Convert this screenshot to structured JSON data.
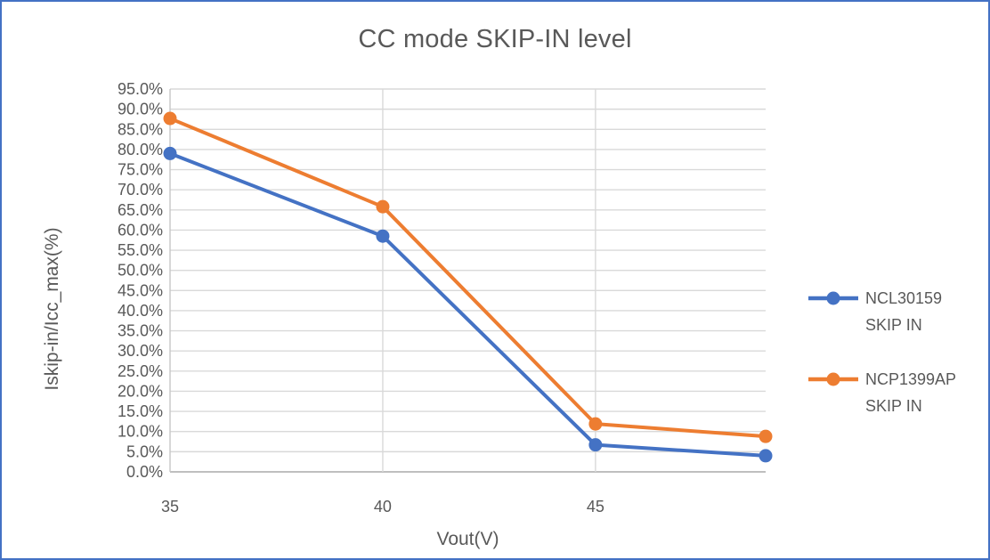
{
  "colors": {
    "frame_border": "#4472C4",
    "text": "#595959",
    "gridline": "#D9D9D9",
    "axis_line": "#BFBFBF"
  },
  "legend": {
    "entries": [
      {
        "label_line1": "NCL30159",
        "label_line2": "SKIP IN",
        "color": "#4472C4"
      },
      {
        "label_line1": "NCP1399AP",
        "label_line2": "SKIP IN",
        "color": "#ED7D31"
      }
    ]
  },
  "chart_data": {
    "type": "line",
    "title": "CC mode SKIP-IN level",
    "xlabel": "Vout(V)",
    "ylabel": "Iskip-in/Icc_max(%)",
    "xlim": [
      35,
      49
    ],
    "ylim_pct": [
      0,
      95
    ],
    "grid": true,
    "legend_position": "right",
    "x": [
      35,
      40,
      45,
      49
    ],
    "series": [
      {
        "name": "NCL30159 SKIP IN",
        "color": "#4472C4",
        "values_pct": [
          79.0,
          58.5,
          6.7,
          4.0
        ]
      },
      {
        "name": "NCP1399AP SKIP IN",
        "color": "#ED7D31",
        "values_pct": [
          87.7,
          65.8,
          11.9,
          8.8
        ]
      }
    ],
    "x_ticks": [
      {
        "value": 35,
        "label": "35"
      },
      {
        "value": 40,
        "label": "40"
      },
      {
        "value": 45,
        "label": "45"
      }
    ],
    "y_ticks": [
      {
        "value": 0,
        "label": "0.0%"
      },
      {
        "value": 5,
        "label": "5.0%"
      },
      {
        "value": 10,
        "label": "10.0%"
      },
      {
        "value": 15,
        "label": "15.0%"
      },
      {
        "value": 20,
        "label": "20.0%"
      },
      {
        "value": 25,
        "label": "25.0%"
      },
      {
        "value": 30,
        "label": "30.0%"
      },
      {
        "value": 35,
        "label": "35.0%"
      },
      {
        "value": 40,
        "label": "40.0%"
      },
      {
        "value": 45,
        "label": "45.0%"
      },
      {
        "value": 50,
        "label": "50.0%"
      },
      {
        "value": 55,
        "label": "55.0%"
      },
      {
        "value": 60,
        "label": "60.0%"
      },
      {
        "value": 65,
        "label": "65.0%"
      },
      {
        "value": 70,
        "label": "70.0%"
      },
      {
        "value": 75,
        "label": "75.0%"
      },
      {
        "value": 80,
        "label": "80.0%"
      },
      {
        "value": 85,
        "label": "85.0%"
      },
      {
        "value": 90,
        "label": "90.0%"
      },
      {
        "value": 95,
        "label": "95.0%"
      }
    ]
  }
}
